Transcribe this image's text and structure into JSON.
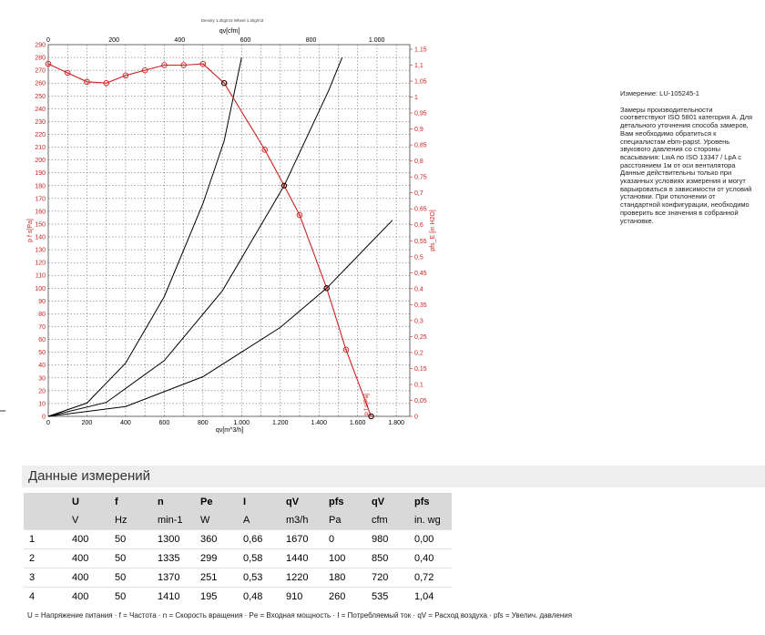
{
  "chart_data": {
    "type": "line",
    "title": "Density 1.2kg/m3 Wheel 1.2kg/m3",
    "x_top_label": "qv[cfm]",
    "x_top_ticks": [
      "0",
      "200",
      "400",
      "600",
      "800",
      "1.000"
    ],
    "xlabel": "qv[m^3/h]",
    "x_ticks": [
      "0",
      "200",
      "400",
      "600",
      "800",
      "1.000",
      "1.200",
      "1.400",
      "1.600",
      "1.800"
    ],
    "xlim": [
      0,
      1870
    ],
    "ylabel": "p f s[Pa]",
    "ylim": [
      0,
      290
    ],
    "y_ticks": [
      "0",
      "10",
      "20",
      "30",
      "40",
      "50",
      "60",
      "70",
      "80",
      "90",
      "100",
      "110",
      "120",
      "130",
      "140",
      "150",
      "160",
      "170",
      "180",
      "190",
      "200",
      "210",
      "220",
      "230",
      "240",
      "250",
      "260",
      "270",
      "280",
      "290"
    ],
    "y2label": "pfs_E [in H2O]",
    "y2_ticks": [
      "0",
      "0,05",
      "0,1",
      "0,15",
      "0,2",
      "0,25",
      "0,3",
      "0,35",
      "0,4",
      "0,45",
      "0,5",
      "0,55",
      "0,6",
      "0,65",
      "0,7",
      "0,75",
      "0,8",
      "0,85",
      "0,9",
      "0,95",
      "1",
      "1,05",
      "1,1",
      "1,15"
    ],
    "grid": true,
    "series": [
      {
        "name": "p f s[Pa]",
        "color": "#cc2222",
        "x": [
          0,
          100,
          200,
          300,
          400,
          500,
          600,
          700,
          800,
          910,
          1120,
          1220,
          1300,
          1440,
          1540,
          1670
        ],
        "y": [
          275,
          268,
          261,
          260,
          266,
          270,
          274,
          274,
          275,
          260,
          208,
          180,
          157,
          100,
          52,
          0
        ]
      }
    ],
    "system_curves": [
      {
        "x": [
          0,
          200,
          400,
          600,
          800,
          910,
          1000
        ],
        "y": [
          0,
          10.4,
          41.5,
          93.4,
          166,
          215,
          280
        ]
      },
      {
        "x": [
          0,
          300,
          600,
          900,
          1220,
          1450,
          1520
        ],
        "y": [
          0,
          10.9,
          43.5,
          97.9,
          180,
          254,
          280
        ]
      },
      {
        "x": [
          0,
          400,
          800,
          1200,
          1440,
          1780
        ],
        "y": [
          0,
          7.7,
          30.9,
          69.4,
          100,
          153
        ]
      }
    ],
    "operating_points": [
      {
        "x": 910,
        "y": 260
      },
      {
        "x": 1220,
        "y": 180
      },
      {
        "x": 1440,
        "y": 100
      },
      {
        "x": 1670,
        "y": 0
      }
    ],
    "marker_label": "p f s[Pa]"
  },
  "info": {
    "measurement": "Измерение: LU-105245-1",
    "lines_a": [
      "Замеры производительности",
      "соответствуют ISO 5801 категория A. Для",
      "детального уточнения способа замеров,",
      "Вам необходимо обратиться к",
      "специалистам ebm-papst. Уровень",
      "звукового давления со стороны",
      "всасывания: LwA по ISO 13347 / LpA с",
      "расстоянием 1м от оси вентилятора"
    ],
    "lines_b": [
      "Данные действительны только при",
      "указанных условиях измерения и могут",
      "варьироваться в зависимости от условий",
      "установки. При отклонении от",
      "стандартной конфигурации, необходимо",
      "проверить все значения в собранной",
      "установке."
    ]
  },
  "section_title": "Данные измерений",
  "table": {
    "header1": [
      "",
      "U",
      "f",
      "n",
      "Pe",
      "I",
      "qV",
      "pfs",
      "qV",
      "pfs"
    ],
    "header2": [
      "",
      "V",
      "Hz",
      "min-1",
      "W",
      "A",
      "m3/h",
      "Pa",
      "cfm",
      "in. wg"
    ],
    "rows": [
      [
        "1",
        "400",
        "50",
        "1300",
        "360",
        "0,66",
        "1670",
        "0",
        "980",
        "0,00"
      ],
      [
        "2",
        "400",
        "50",
        "1335",
        "299",
        "0,58",
        "1440",
        "100",
        "850",
        "0,40"
      ],
      [
        "3",
        "400",
        "50",
        "1370",
        "251",
        "0,53",
        "1220",
        "180",
        "720",
        "0,72"
      ],
      [
        "4",
        "400",
        "50",
        "1410",
        "195",
        "0,48",
        "910",
        "260",
        "535",
        "1,04"
      ]
    ]
  },
  "legend": "U = Напряжение питания · f = Частота · n = Скорость вращения · Pe = Входная мощность · I = Потребляемый ток · qV = Расход воздуха · pfs = Увелич. давления"
}
